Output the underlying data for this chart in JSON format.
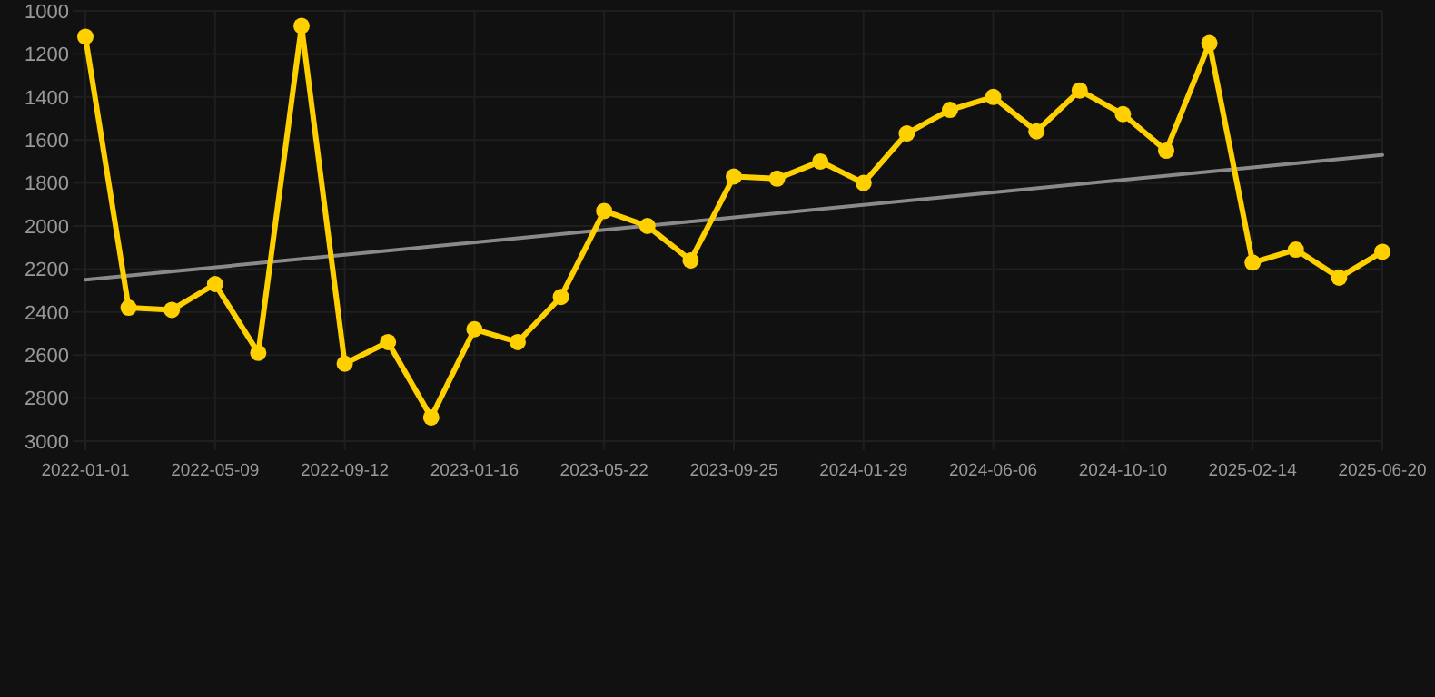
{
  "chart_data": {
    "type": "line",
    "categories": [
      "2022-01-01",
      null,
      null,
      "2022-05-09",
      null,
      null,
      "2022-09-12",
      null,
      null,
      "2023-01-16",
      null,
      null,
      "2023-05-22",
      null,
      null,
      "2023-09-25",
      null,
      null,
      "2024-01-29",
      null,
      null,
      "2024-06-06",
      null,
      null,
      "2024-10-10",
      null,
      null,
      "2025-02-14",
      null,
      null,
      "2025-06-20"
    ],
    "series": [
      {
        "color": "#ffd000",
        "marker": "circle",
        "values": [
          1120,
          2380,
          2390,
          2270,
          2590,
          1070,
          2640,
          2540,
          2890,
          2480,
          2540,
          2330,
          1930,
          2000,
          2160,
          1770,
          1780,
          1700,
          1800,
          1570,
          1460,
          1400,
          1560,
          1370,
          1480,
          1650,
          1150,
          2170,
          2110,
          2240,
          2120
        ]
      },
      {
        "color": "#8a8a8a",
        "marker": "none",
        "values": [
          2250,
          null,
          null,
          null,
          null,
          null,
          null,
          null,
          null,
          null,
          null,
          null,
          null,
          null,
          null,
          null,
          null,
          null,
          null,
          null,
          null,
          null,
          null,
          null,
          null,
          null,
          null,
          null,
          null,
          null,
          1670
        ]
      }
    ],
    "ylim": [
      3000,
      1000
    ],
    "yticks": [
      1000,
      1200,
      1400,
      1600,
      1800,
      2000,
      2200,
      2400,
      2600,
      2800,
      3000
    ],
    "grid": true
  }
}
